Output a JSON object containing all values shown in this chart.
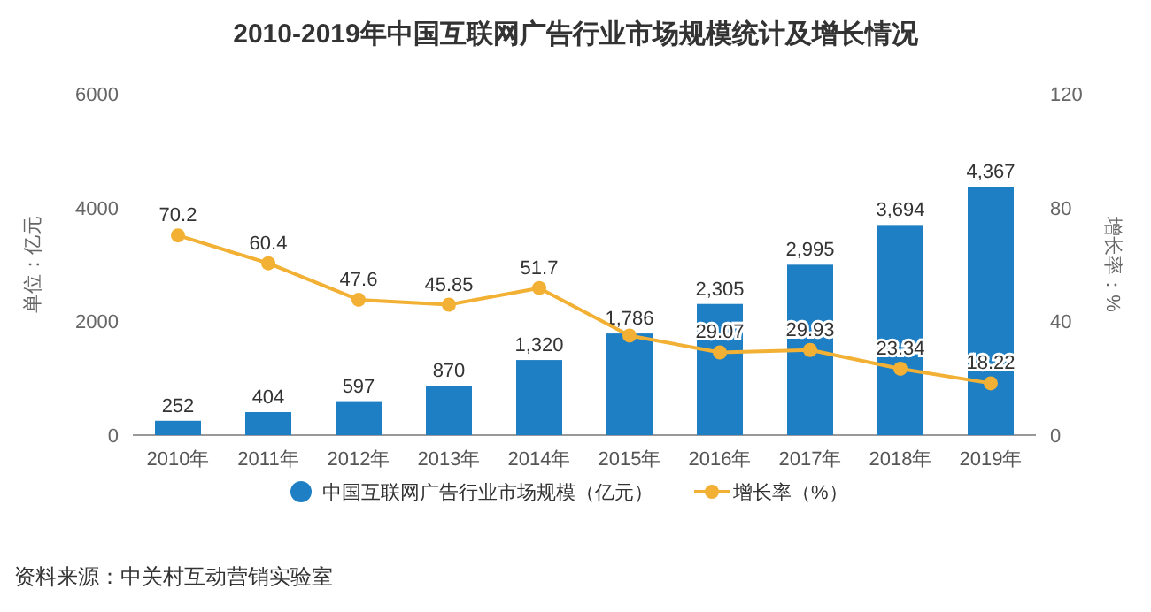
{
  "chart_data": {
    "type": "bar",
    "title": "2010-2019年中国互联网广告行业市场规模统计及增长情况",
    "categories": [
      "2010年",
      "2011年",
      "2012年",
      "2013年",
      "2014年",
      "2015年",
      "2016年",
      "2017年",
      "2018年",
      "2019年"
    ],
    "series": [
      {
        "name": "中国互联网广告行业市场规模（亿元）",
        "color": "#1f7fc4",
        "values": [
          252,
          404,
          597,
          870,
          1320,
          1786,
          2305,
          2995,
          3694,
          4367
        ],
        "value_labels": [
          "252",
          "404",
          "597",
          "870",
          "1,320",
          "1,786",
          "2,305",
          "2,995",
          "3,694",
          "4,367"
        ]
      },
      {
        "name": "增长率（%）",
        "type": "line",
        "axis": "y2",
        "color": "#f2b134",
        "marker": "circle",
        "values": [
          70.2,
          60.4,
          47.6,
          45.85,
          51.7,
          35,
          29.07,
          29.93,
          23.34,
          18.22
        ],
        "value_labels": [
          "70.2",
          "60.4",
          "47.6",
          "45.85",
          "51.7",
          null,
          "29.07",
          "29.93",
          "23.34",
          "18.22"
        ]
      }
    ],
    "ylabel": "单位：亿元",
    "y2label": "增长率：%",
    "ylim": [
      0,
      6000
    ],
    "yticks": [
      0,
      2000,
      4000,
      6000
    ],
    "y2lim": [
      0,
      120
    ],
    "y2ticks": [
      0,
      40,
      80,
      120
    ],
    "legend": "bottom",
    "annotations": [
      "资料来源：中关村互动营销实验室"
    ]
  }
}
